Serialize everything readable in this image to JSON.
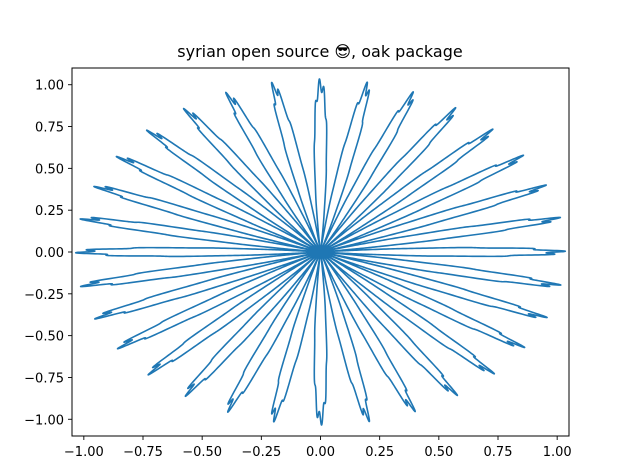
{
  "chart_data": {
    "type": "line",
    "title": "syrian open source 😎, oak package",
    "xlabel": "",
    "ylabel": "",
    "xlim": [
      -1.05,
      1.05
    ],
    "ylim": [
      -1.1,
      1.1
    ],
    "x_ticks": [
      -1.0,
      -0.75,
      -0.5,
      -0.25,
      0.0,
      0.25,
      0.5,
      0.75,
      1.0
    ],
    "x_tick_labels": [
      "−1.00",
      "−0.75",
      "−0.50",
      "−0.25",
      "0.00",
      "0.25",
      "0.50",
      "0.75",
      "1.00"
    ],
    "y_ticks": [
      1.0,
      0.75,
      0.5,
      0.25,
      0.0,
      -0.25,
      -0.5,
      -0.75,
      -1.0
    ],
    "y_tick_labels": [
      "1.00",
      "0.75",
      "0.50",
      "0.25",
      "0.00",
      "−0.25",
      "−0.50",
      "−0.75",
      "−1.00"
    ],
    "grid": false,
    "series": [
      {
        "color": "#1f77b4",
        "curve": {
          "kind": "parametric-polar",
          "parameter_range": [
            0,
            6.283185307179586
          ],
          "samples": 9000,
          "radius_terms": [
            {
              "amplitude": 0.5,
              "frequency": 0
            },
            {
              "amplitude": 0.5,
              "frequency": 32,
              "function": "cos"
            }
          ],
          "angle_frequency": 1,
          "ripple": {
            "amplitude": 0.04,
            "frequency": 320
          }
        }
      }
    ]
  },
  "header_mark": {
    "color": "#1f4e9c"
  }
}
